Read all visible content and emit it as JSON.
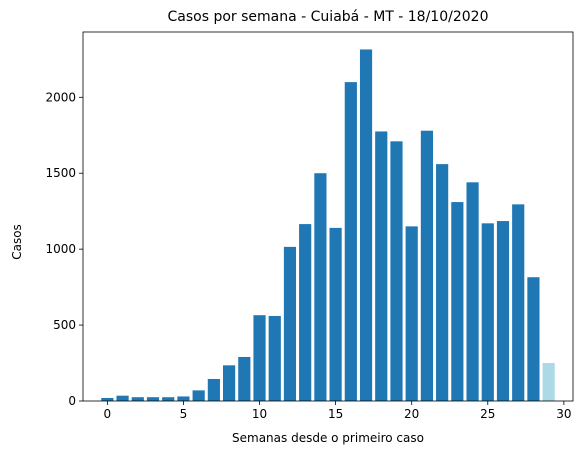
{
  "chart_data": {
    "type": "bar",
    "title": "Casos por semana - Cuiabá - MT - 18/10/2020",
    "xlabel": "Semanas desde o primeiro caso",
    "ylabel": "Casos",
    "x": [
      0,
      1,
      2,
      3,
      4,
      5,
      6,
      7,
      8,
      9,
      10,
      11,
      12,
      13,
      14,
      15,
      16,
      17,
      18,
      19,
      20,
      21,
      22,
      23,
      24,
      25,
      26,
      27,
      28,
      29
    ],
    "values": [
      20,
      35,
      25,
      25,
      25,
      30,
      70,
      145,
      235,
      290,
      565,
      560,
      1015,
      1165,
      1500,
      1140,
      2100,
      2315,
      1775,
      1710,
      1150,
      1780,
      1560,
      1310,
      1440,
      1170,
      1185,
      1295,
      815,
      250
    ],
    "highlight_index": 29,
    "xlim": [
      -1.6,
      30.6
    ],
    "ylim": [
      0,
      2430
    ],
    "xticks": [
      0,
      5,
      10,
      15,
      20,
      25,
      30
    ],
    "yticks": [
      0,
      500,
      1000,
      1500,
      2000
    ],
    "grid": false,
    "colors": {
      "bar": "#1f77b4",
      "highlight": "#add8e6"
    }
  }
}
